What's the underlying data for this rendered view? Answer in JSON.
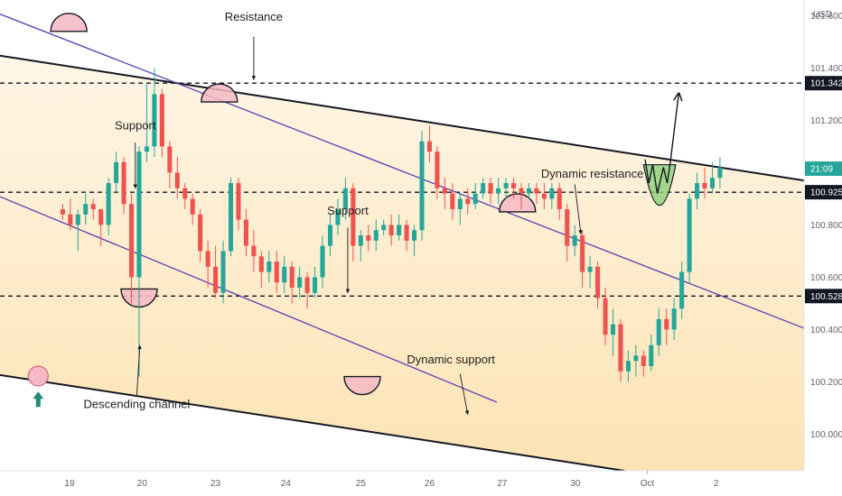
{
  "chart_data": {
    "type": "candlestick",
    "currency": "USD",
    "y_ticks": [
      "101.600",
      "101.400",
      "101.200",
      "100.800",
      "100.600",
      "100.400",
      "100.200",
      "100.000"
    ],
    "ylim": [
      99.86,
      101.66
    ],
    "x_ticks": [
      {
        "label": "19",
        "x": 0.09
      },
      {
        "label": "20",
        "x": 1.04
      },
      {
        "label": "23",
        "x": 2.0
      },
      {
        "label": "24",
        "x": 2.92
      },
      {
        "label": "25",
        "x": 3.9
      },
      {
        "label": "26",
        "x": 4.8
      },
      {
        "label": "27",
        "x": 5.75
      },
      {
        "label": "30",
        "x": 6.71
      },
      {
        "label": "Oct",
        "x": 7.65
      },
      {
        "label": "2",
        "x": 8.55
      }
    ],
    "xlim": [
      -0.82,
      9.7
    ],
    "price_badges": [
      {
        "label": "101.342",
        "value": 101.342,
        "color": "#131722"
      },
      {
        "label": "21:09",
        "value": 101.015,
        "color": "#26a69a"
      },
      {
        "label": "100.925",
        "value": 100.925,
        "color": "#131722"
      },
      {
        "label": "100.528",
        "value": 100.528,
        "color": "#131722"
      }
    ],
    "horizontal_levels": [
      101.342,
      100.925,
      100.528
    ],
    "annotations": [
      {
        "text": "Resistance",
        "x": 2.5,
        "y": 101.58
      },
      {
        "text": "Support",
        "x": 0.95,
        "y": 101.165
      },
      {
        "text": "Support",
        "x": 3.73,
        "y": 100.84
      },
      {
        "text": "Dynamic resistance",
        "x": 6.93,
        "y": 100.98
      },
      {
        "text": "Dynamic support",
        "x": 5.08,
        "y": 100.27
      },
      {
        "text": "Descending channel",
        "x": 0.97,
        "y": 100.1
      }
    ],
    "trendlines": [
      {
        "color": "#131722",
        "points": [
          [
            -0.82,
            101.447
          ],
          [
            9.7,
            100.97
          ]
        ]
      },
      {
        "color": "#131722",
        "points": [
          [
            -0.82,
            100.226
          ],
          [
            7.35,
            99.86
          ]
        ]
      },
      {
        "color": "#5b3fb3",
        "points": [
          [
            -0.82,
            101.606
          ],
          [
            9.7,
            100.405
          ]
        ]
      },
      {
        "color": "#5b3fb3",
        "points": [
          [
            -0.82,
            100.908
          ],
          [
            5.68,
            100.122
          ]
        ]
      }
    ],
    "candles": [
      [
        0.0,
        100.86,
        100.84,
        100.88,
        100.82
      ],
      [
        0.1,
        100.84,
        100.8,
        100.9,
        100.78
      ],
      [
        0.2,
        100.8,
        100.84,
        100.86,
        100.7
      ],
      [
        0.3,
        100.84,
        100.88,
        100.92,
        100.8
      ],
      [
        0.4,
        100.88,
        100.86,
        100.9,
        100.82
      ],
      [
        0.5,
        100.86,
        100.8,
        100.86,
        100.72
      ],
      [
        0.6,
        100.8,
        100.96,
        100.98,
        100.76
      ],
      [
        0.7,
        100.96,
        101.04,
        101.08,
        100.92
      ],
      [
        0.8,
        101.04,
        100.88,
        101.06,
        100.84
      ],
      [
        0.9,
        100.88,
        100.6,
        100.92,
        100.5
      ],
      [
        1.0,
        100.6,
        101.08,
        101.1,
        100.22
      ],
      [
        1.1,
        101.08,
        101.1,
        101.34,
        101.04
      ],
      [
        1.2,
        101.1,
        101.3,
        101.4,
        101.06
      ],
      [
        1.3,
        101.3,
        101.1,
        101.32,
        101.06
      ],
      [
        1.4,
        101.1,
        101.0,
        101.12,
        100.94
      ],
      [
        1.5,
        101.0,
        100.94,
        101.06,
        100.9
      ],
      [
        1.6,
        100.94,
        100.9,
        100.96,
        100.86
      ],
      [
        1.7,
        100.9,
        100.84,
        100.92,
        100.8
      ],
      [
        1.8,
        100.84,
        100.7,
        100.86,
        100.66
      ],
      [
        1.9,
        100.7,
        100.64,
        100.74,
        100.56
      ],
      [
        2.0,
        100.64,
        100.54,
        100.72,
        100.52
      ],
      [
        2.1,
        100.54,
        100.7,
        100.74,
        100.5
      ],
      [
        2.2,
        100.7,
        100.96,
        100.98,
        100.68
      ],
      [
        2.3,
        100.96,
        100.82,
        100.98,
        100.78
      ],
      [
        2.4,
        100.82,
        100.72,
        100.86,
        100.68
      ],
      [
        2.5,
        100.72,
        100.68,
        100.78,
        100.62
      ],
      [
        2.6,
        100.68,
        100.62,
        100.7,
        100.56
      ],
      [
        2.7,
        100.62,
        100.66,
        100.7,
        100.58
      ],
      [
        2.8,
        100.66,
        100.58,
        100.7,
        100.54
      ],
      [
        2.9,
        100.58,
        100.64,
        100.68,
        100.54
      ],
      [
        3.0,
        100.64,
        100.56,
        100.66,
        100.5
      ],
      [
        3.1,
        100.56,
        100.6,
        100.64,
        100.52
      ],
      [
        3.2,
        100.6,
        100.54,
        100.62,
        100.48
      ],
      [
        3.3,
        100.54,
        100.6,
        100.64,
        100.52
      ],
      [
        3.4,
        100.6,
        100.72,
        100.76,
        100.56
      ],
      [
        3.5,
        100.72,
        100.8,
        100.84,
        100.68
      ],
      [
        3.6,
        100.8,
        100.86,
        100.9,
        100.76
      ],
      [
        3.7,
        100.86,
        100.94,
        100.98,
        100.82
      ],
      [
        3.8,
        100.94,
        100.72,
        100.96,
        100.66
      ],
      [
        3.9,
        100.72,
        100.76,
        100.78,
        100.66
      ],
      [
        4.0,
        100.76,
        100.74,
        100.8,
        100.7
      ],
      [
        4.1,
        100.74,
        100.78,
        100.82,
        100.7
      ],
      [
        4.2,
        100.78,
        100.8,
        100.82,
        100.76
      ],
      [
        4.3,
        100.8,
        100.76,
        100.84,
        100.72
      ],
      [
        4.4,
        100.76,
        100.8,
        100.84,
        100.74
      ],
      [
        4.5,
        100.8,
        100.74,
        100.82,
        100.7
      ],
      [
        4.6,
        100.74,
        100.78,
        100.8,
        100.68
      ],
      [
        4.7,
        100.78,
        101.12,
        101.16,
        100.74
      ],
      [
        4.8,
        101.12,
        101.08,
        101.18,
        101.04
      ],
      [
        4.9,
        101.08,
        100.94,
        101.1,
        100.9
      ],
      [
        5.0,
        100.94,
        100.92,
        100.98,
        100.86
      ],
      [
        5.1,
        100.92,
        100.86,
        100.96,
        100.82
      ],
      [
        5.2,
        100.86,
        100.9,
        100.92,
        100.8
      ],
      [
        5.3,
        100.9,
        100.88,
        100.94,
        100.84
      ],
      [
        5.4,
        100.88,
        100.92,
        100.96,
        100.86
      ],
      [
        5.5,
        100.92,
        100.96,
        100.98,
        100.9
      ],
      [
        5.6,
        100.96,
        100.92,
        100.98,
        100.88
      ],
      [
        5.7,
        100.92,
        100.94,
        100.98,
        100.88
      ],
      [
        5.8,
        100.94,
        100.96,
        100.98,
        100.9
      ],
      [
        5.9,
        100.96,
        100.94,
        100.98,
        100.9
      ],
      [
        6.0,
        100.94,
        100.92,
        100.96,
        100.86
      ],
      [
        6.1,
        100.92,
        100.94,
        100.96,
        100.9
      ],
      [
        6.2,
        100.94,
        100.92,
        100.96,
        100.88
      ],
      [
        6.3,
        100.92,
        100.9,
        100.96,
        100.86
      ],
      [
        6.4,
        100.9,
        100.94,
        100.96,
        100.86
      ],
      [
        6.5,
        100.94,
        100.86,
        100.96,
        100.82
      ],
      [
        6.6,
        100.86,
        100.72,
        100.88,
        100.66
      ],
      [
        6.7,
        100.72,
        100.76,
        100.8,
        100.68
      ],
      [
        6.8,
        100.76,
        100.62,
        100.78,
        100.56
      ],
      [
        6.9,
        100.62,
        100.64,
        100.68,
        100.56
      ],
      [
        7.0,
        100.64,
        100.52,
        100.66,
        100.48
      ],
      [
        7.1,
        100.52,
        100.38,
        100.56,
        100.34
      ],
      [
        7.2,
        100.38,
        100.42,
        100.48,
        100.3
      ],
      [
        7.3,
        100.42,
        100.24,
        100.44,
        100.2
      ],
      [
        7.4,
        100.24,
        100.28,
        100.32,
        100.2
      ],
      [
        7.5,
        100.28,
        100.3,
        100.34,
        100.22
      ],
      [
        7.6,
        100.3,
        100.26,
        100.32,
        100.22
      ],
      [
        7.7,
        100.26,
        100.34,
        100.38,
        100.24
      ],
      [
        7.8,
        100.34,
        100.44,
        100.48,
        100.3
      ],
      [
        7.9,
        100.44,
        100.4,
        100.48,
        100.34
      ],
      [
        8.0,
        100.4,
        100.48,
        100.52,
        100.36
      ],
      [
        8.1,
        100.48,
        100.62,
        100.66,
        100.44
      ],
      [
        8.2,
        100.62,
        100.9,
        100.92,
        100.58
      ],
      [
        8.3,
        100.9,
        100.96,
        101.0,
        100.86
      ],
      [
        8.4,
        100.96,
        100.94,
        101.02,
        100.9
      ],
      [
        8.5,
        100.94,
        100.98,
        101.04,
        100.92
      ],
      [
        8.6,
        100.98,
        101.02,
        101.06,
        100.94
      ]
    ]
  },
  "forecast": {
    "color": "#131722"
  },
  "colors": {
    "up": "#26a69a",
    "down": "#ef5350",
    "bg_top": "#fff7e3",
    "bg_bottom": "#fde3b5",
    "pivot": "#f5b8c4"
  }
}
